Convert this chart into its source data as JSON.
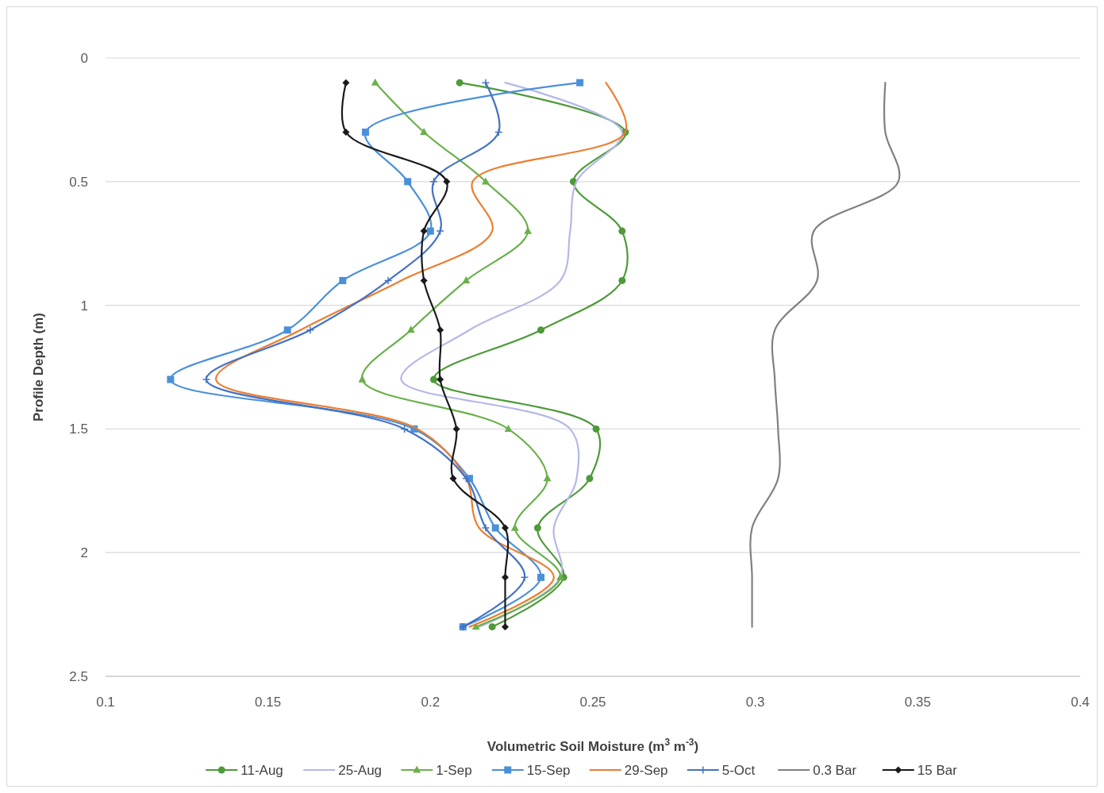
{
  "chart_data": {
    "type": "line",
    "xlabel": "Volumetric Soil Moisture (m$^{3}$ m$^{-3}$)",
    "ylabel": "Profile Depth (m)",
    "xlim": [
      0.1,
      0.4
    ],
    "xticks": [
      0.1,
      0.15,
      0.2,
      0.25,
      0.3,
      0.35,
      0.4
    ],
    "ylim": [
      2.5,
      0
    ],
    "yticks": [
      0,
      0.5,
      1,
      1.5,
      2,
      2.5
    ],
    "grid": "y",
    "legend": "bottom",
    "series": [
      {
        "name": "11-Aug",
        "color": "#4e9a3a",
        "marker": "circle",
        "x": [
          0.209,
          0.26,
          0.244,
          0.259,
          0.259,
          0.234,
          0.201,
          0.251,
          0.249,
          0.233,
          0.241,
          0.219
        ],
        "values": [
          0.1,
          0.3,
          0.5,
          0.7,
          0.9,
          1.1,
          1.3,
          1.5,
          1.7,
          1.9,
          2.1,
          2.3
        ]
      },
      {
        "name": "25-Aug",
        "color": "#b4b8e8",
        "marker": "none",
        "x": [
          0.223,
          0.259,
          0.245,
          0.243,
          0.24,
          0.212,
          0.191,
          0.243,
          0.245,
          0.238,
          0.24,
          0.215
        ],
        "values": [
          0.1,
          0.3,
          0.5,
          0.7,
          0.9,
          1.1,
          1.3,
          1.5,
          1.7,
          1.9,
          2.1,
          2.3
        ]
      },
      {
        "name": "1-Sep",
        "color": "#6ab04c",
        "marker": "triangle",
        "x": [
          0.183,
          0.198,
          0.217,
          0.23,
          0.211,
          0.194,
          0.179,
          0.224,
          0.236,
          0.226,
          0.24,
          0.214
        ],
        "values": [
          0.1,
          0.3,
          0.5,
          0.7,
          0.9,
          1.1,
          1.3,
          1.5,
          1.7,
          1.9,
          2.1,
          2.3
        ]
      },
      {
        "name": "15-Sep",
        "color": "#4a90d9",
        "marker": "square",
        "x": [
          0.246,
          0.18,
          0.193,
          0.2,
          0.173,
          0.156,
          0.12,
          0.195,
          0.212,
          0.22,
          0.234,
          0.21
        ],
        "values": [
          0.1,
          0.3,
          0.5,
          0.7,
          0.9,
          1.1,
          1.3,
          1.5,
          1.7,
          1.9,
          2.1,
          2.3
        ]
      },
      {
        "name": "29-Sep",
        "color": "#ed7d31",
        "marker": "none",
        "x": [
          0.254,
          0.26,
          0.213,
          0.219,
          0.191,
          0.16,
          0.134,
          0.196,
          0.211,
          0.215,
          0.238,
          0.212
        ],
        "values": [
          0.1,
          0.3,
          0.5,
          0.7,
          0.9,
          1.1,
          1.3,
          1.5,
          1.7,
          1.9,
          2.1,
          2.3
        ]
      },
      {
        "name": "5-Oct",
        "color": "#4472c4",
        "marker": "cross",
        "x": [
          0.217,
          0.221,
          0.201,
          0.203,
          0.187,
          0.163,
          0.131,
          0.192,
          0.211,
          0.217,
          0.229,
          0.21
        ],
        "values": [
          0.1,
          0.3,
          0.5,
          0.7,
          0.9,
          1.1,
          1.3,
          1.5,
          1.7,
          1.9,
          2.1,
          2.3
        ]
      },
      {
        "name": "0.3 Bar",
        "color": "#808080",
        "marker": "none",
        "x": [
          0.34,
          0.34,
          0.344,
          0.318,
          0.319,
          0.306,
          0.306,
          0.307,
          0.307,
          0.299,
          0.299,
          0.299
        ],
        "values": [
          0.1,
          0.3,
          0.5,
          0.7,
          0.9,
          1.1,
          1.3,
          1.5,
          1.7,
          1.9,
          2.1,
          2.3
        ]
      },
      {
        "name": "15 Bar",
        "color": "#1a1a1a",
        "marker": "diamond",
        "x": [
          0.174,
          0.174,
          0.205,
          0.198,
          0.198,
          0.203,
          0.203,
          0.208,
          0.207,
          0.223,
          0.223,
          0.223
        ],
        "values": [
          0.1,
          0.3,
          0.5,
          0.7,
          0.9,
          1.1,
          1.3,
          1.5,
          1.7,
          1.9,
          2.1,
          2.3
        ]
      }
    ]
  }
}
